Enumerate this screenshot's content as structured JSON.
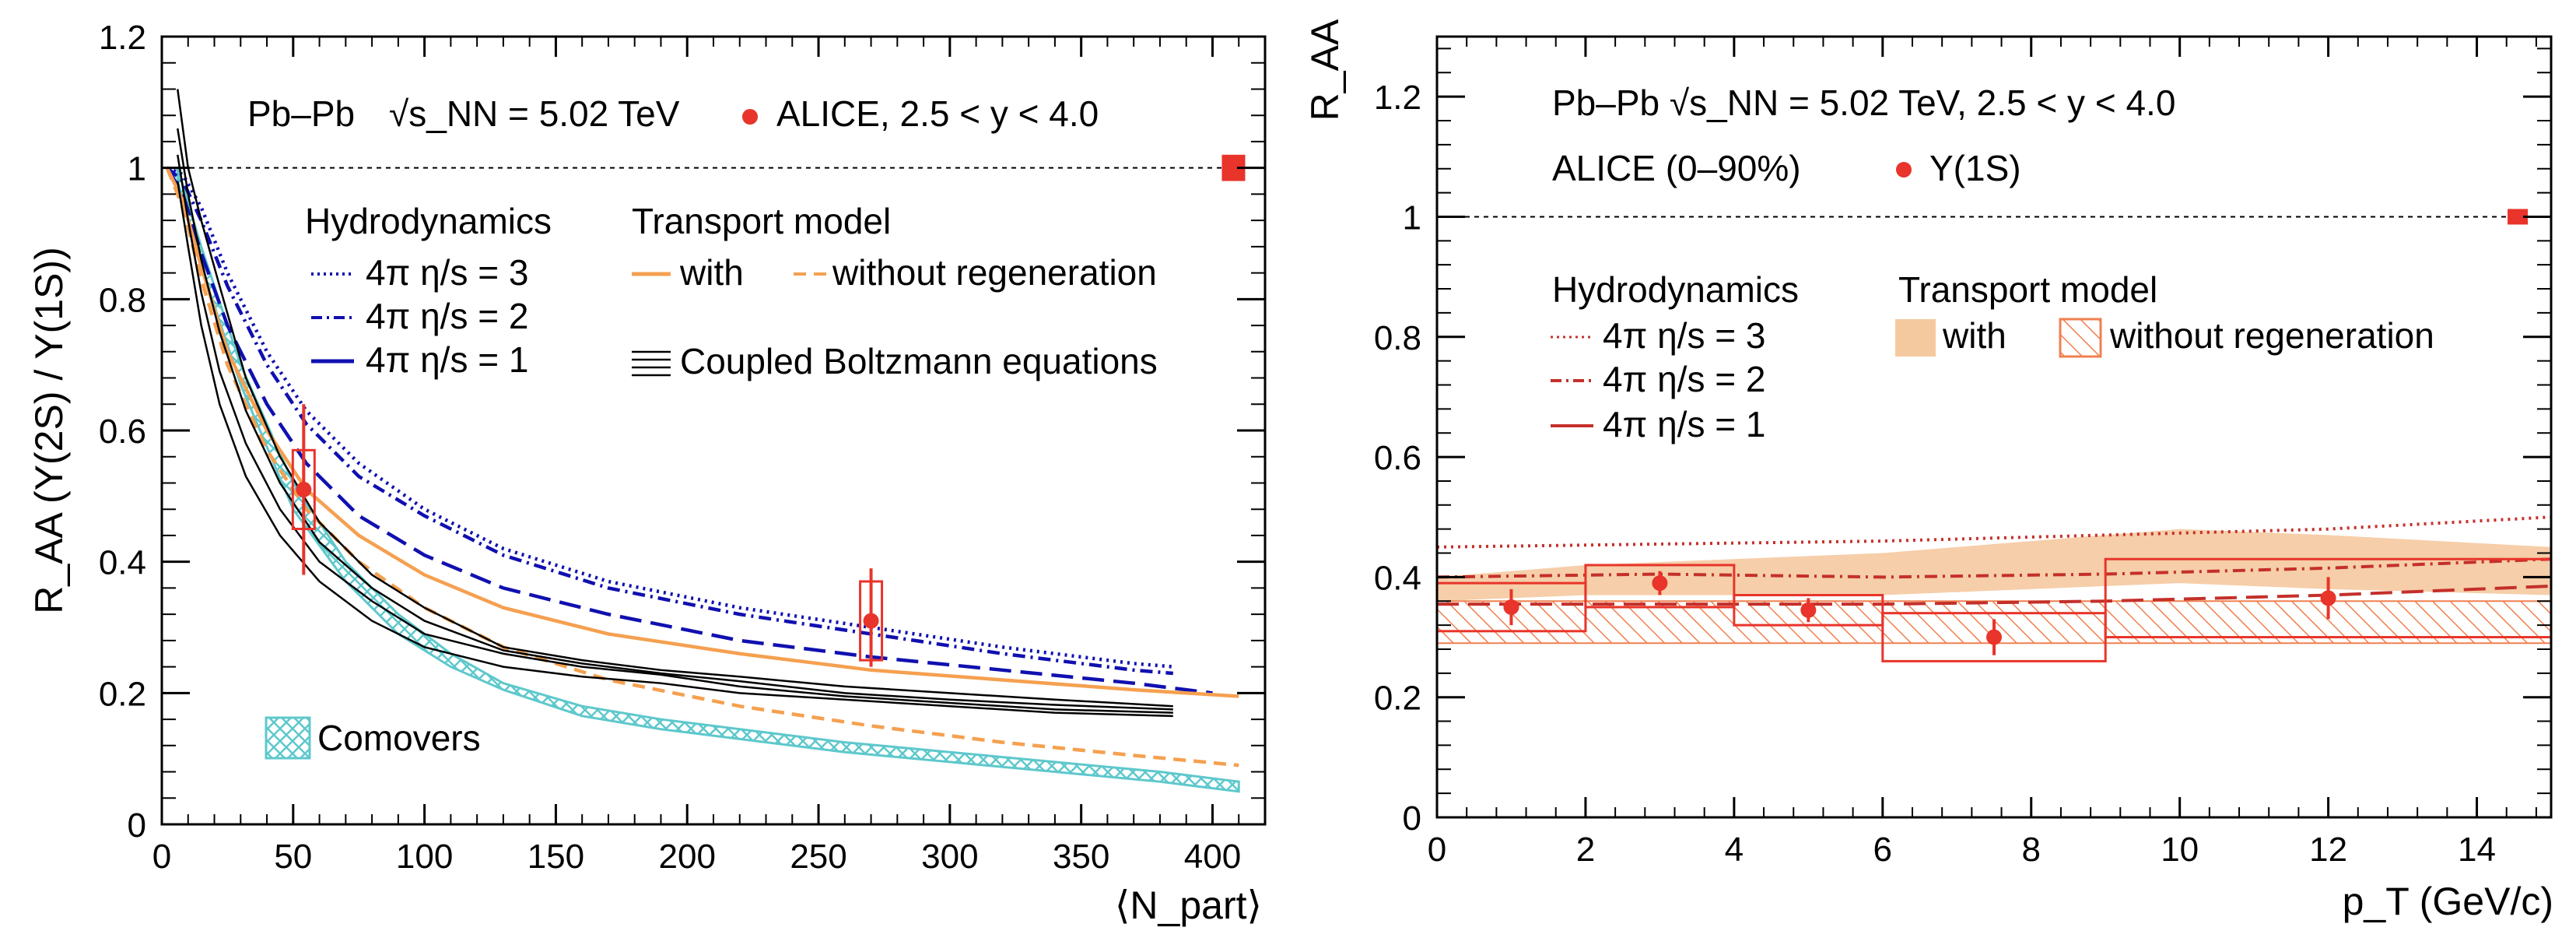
{
  "colors": {
    "alice": "#e8342a",
    "hydro_left": "#1010b0",
    "transport": "#f5a050",
    "comovers": "#5ec8cc",
    "boltzmann": "#000000",
    "hydro_right": "#c4302a",
    "band_fill": "#f5c9a0",
    "hatch": "#f08050"
  },
  "chart_data": [
    {
      "type": "line",
      "panel": "left",
      "ylabel": "R_AA (Υ(2S) / Υ(1S))",
      "xlabel": "⟨N_part⟩",
      "xlim": [
        0,
        420
      ],
      "ylim": [
        0,
        1.2
      ],
      "xticks": [
        "0",
        "50",
        "100",
        "150",
        "200",
        "250",
        "300",
        "350",
        "400"
      ],
      "yticks": [
        "0",
        "0.2",
        "0.4",
        "0.6",
        "0.8",
        "1",
        "1.2"
      ],
      "header": {
        "system": "Pb–Pb",
        "energy": "√s_NN = 5.02 TeV",
        "alice": "ALICE, 2.5 < y < 4.0"
      },
      "legend": {
        "hydro_title": "Hydrodynamics",
        "hydro3": "4π η/s = 3",
        "hydro2": "4π η/s = 2",
        "hydro1": "4π η/s = 1",
        "transport_title": "Transport model",
        "with": "with",
        "without": "without regeneration",
        "boltzmann": "Coupled Boltzmann equations",
        "comovers": "Comovers"
      },
      "series": [
        {
          "name": "4π η/s = 3",
          "style": "dotted",
          "color": "hydro_left",
          "x": [
            2,
            8,
            15,
            25,
            40,
            55,
            75,
            100,
            130,
            170,
            220,
            270,
            320,
            370,
            385
          ],
          "y": [
            1.0,
            0.99,
            0.94,
            0.84,
            0.72,
            0.63,
            0.55,
            0.48,
            0.42,
            0.37,
            0.33,
            0.3,
            0.27,
            0.245,
            0.24
          ]
        },
        {
          "name": "4π η/s = 2",
          "style": "dashdot",
          "color": "hydro_left",
          "x": [
            2,
            8,
            15,
            25,
            40,
            55,
            75,
            100,
            130,
            170,
            220,
            270,
            320,
            370,
            385
          ],
          "y": [
            1.0,
            0.98,
            0.92,
            0.82,
            0.7,
            0.61,
            0.53,
            0.47,
            0.41,
            0.36,
            0.32,
            0.29,
            0.26,
            0.235,
            0.23
          ]
        },
        {
          "name": "4π η/s = 1",
          "style": "longdash",
          "color": "hydro_left",
          "x": [
            2,
            8,
            15,
            25,
            40,
            55,
            75,
            100,
            130,
            170,
            220,
            270,
            320,
            370,
            400
          ],
          "y": [
            1.0,
            0.96,
            0.87,
            0.76,
            0.64,
            0.55,
            0.47,
            0.41,
            0.36,
            0.32,
            0.28,
            0.255,
            0.235,
            0.215,
            0.2
          ]
        },
        {
          "name": "Transport with regeneration",
          "style": "solid",
          "color": "transport",
          "x": [
            2,
            8,
            15,
            25,
            40,
            55,
            75,
            100,
            130,
            170,
            220,
            270,
            320,
            370,
            410
          ],
          "y": [
            1.0,
            0.95,
            0.85,
            0.72,
            0.6,
            0.51,
            0.44,
            0.38,
            0.33,
            0.29,
            0.26,
            0.235,
            0.22,
            0.205,
            0.195
          ]
        },
        {
          "name": "Transport without regeneration",
          "style": "dashed",
          "color": "transport",
          "x": [
            2,
            8,
            15,
            25,
            40,
            55,
            75,
            100,
            130,
            170,
            220,
            270,
            320,
            370,
            410
          ],
          "y": [
            1.0,
            0.94,
            0.83,
            0.7,
            0.57,
            0.48,
            0.4,
            0.33,
            0.27,
            0.22,
            0.18,
            0.15,
            0.125,
            0.105,
            0.09
          ]
        },
        {
          "name": "Coupled Boltzmann 1",
          "style": "solid",
          "color": "boltzmann",
          "x": [
            6,
            10,
            15,
            22,
            32,
            45,
            60,
            80,
            100,
            130,
            160,
            190,
            220,
            260,
            300,
            340,
            385
          ],
          "y": [
            1.12,
            1.0,
            0.92,
            0.82,
            0.68,
            0.56,
            0.46,
            0.38,
            0.33,
            0.27,
            0.25,
            0.235,
            0.225,
            0.21,
            0.2,
            0.19,
            0.18
          ]
        },
        {
          "name": "Coupled Boltzmann 2",
          "style": "solid",
          "color": "boltzmann",
          "x": [
            6,
            10,
            15,
            22,
            32,
            45,
            60,
            80,
            100,
            130,
            160,
            190,
            220,
            260,
            300,
            340,
            385
          ],
          "y": [
            1.06,
            0.96,
            0.86,
            0.75,
            0.63,
            0.52,
            0.43,
            0.36,
            0.31,
            0.265,
            0.245,
            0.23,
            0.218,
            0.2,
            0.19,
            0.182,
            0.175
          ]
        },
        {
          "name": "Coupled Boltzmann 3",
          "style": "solid",
          "color": "boltzmann",
          "x": [
            6,
            10,
            15,
            22,
            32,
            45,
            60,
            80,
            100,
            130,
            160,
            190,
            220,
            260,
            300,
            340,
            385
          ],
          "y": [
            1.02,
            0.92,
            0.81,
            0.69,
            0.58,
            0.48,
            0.4,
            0.34,
            0.29,
            0.26,
            0.24,
            0.228,
            0.21,
            0.195,
            0.185,
            0.175,
            0.17
          ]
        },
        {
          "name": "Coupled Boltzmann 4",
          "style": "solid",
          "color": "boltzmann",
          "x": [
            6,
            10,
            15,
            22,
            32,
            45,
            60,
            80,
            100,
            130,
            160,
            190,
            220,
            260,
            300,
            340,
            385
          ],
          "y": [
            0.98,
            0.88,
            0.76,
            0.64,
            0.53,
            0.44,
            0.37,
            0.31,
            0.27,
            0.24,
            0.225,
            0.215,
            0.2,
            0.19,
            0.18,
            0.17,
            0.165
          ]
        }
      ],
      "comovers_band": {
        "x": [
          6,
          15,
          30,
          50,
          70,
          90,
          110,
          130,
          160,
          190,
          220,
          260,
          300,
          340,
          380,
          410
        ],
        "upper": [
          1.0,
          0.88,
          0.7,
          0.52,
          0.4,
          0.32,
          0.26,
          0.215,
          0.18,
          0.16,
          0.145,
          0.125,
          0.11,
          0.095,
          0.08,
          0.065
        ],
        "lower": [
          0.98,
          0.85,
          0.67,
          0.48,
          0.37,
          0.29,
          0.24,
          0.205,
          0.165,
          0.145,
          0.13,
          0.11,
          0.095,
          0.08,
          0.065,
          0.05
        ]
      },
      "data_points": [
        {
          "x": 54,
          "y": 0.51,
          "stat_low": 0.38,
          "stat_high": 0.64,
          "sys_low": 0.45,
          "sys_high": 0.57
        },
        {
          "x": 270,
          "y": 0.31,
          "stat_low": 0.24,
          "stat_high": 0.39,
          "sys_low": 0.25,
          "sys_high": 0.37
        }
      ],
      "global_uncertainty": {
        "x": 408,
        "low": 0.98,
        "high": 1.02
      },
      "reference_line": 1
    },
    {
      "type": "line",
      "panel": "right",
      "ylabel": "R_AA",
      "xlabel": "p_T (GeV/c)",
      "xlim": [
        0,
        15
      ],
      "ylim": [
        0,
        1.3
      ],
      "xticks": [
        "0",
        "2",
        "4",
        "6",
        "8",
        "10",
        "12",
        "14"
      ],
      "yticks": [
        "0",
        "0.2",
        "0.4",
        "0.6",
        "0.8",
        "1",
        "1.2"
      ],
      "header": {
        "line1": "Pb–Pb √s_NN = 5.02 TeV, 2.5 < y < 4.0",
        "line2_left": "ALICE (0–90%)",
        "line2_right": "Υ(1S)"
      },
      "legend": {
        "hydro_title": "Hydrodynamics",
        "hydro3": "4π η/s = 3",
        "hydro2": "4π η/s = 2",
        "hydro1": "4π η/s = 1",
        "transport_title": "Transport model",
        "with": "with",
        "without": "without regeneration"
      },
      "series": [
        {
          "name": "4π η/s = 3",
          "style": "dotted",
          "x": [
            0,
            3,
            6,
            9,
            12,
            15
          ],
          "y": [
            0.45,
            0.455,
            0.46,
            0.47,
            0.48,
            0.5
          ]
        },
        {
          "name": "4π η/s = 2",
          "style": "dashdot",
          "x": [
            0,
            3,
            6,
            9,
            12,
            15
          ],
          "y": [
            0.4,
            0.405,
            0.4,
            0.405,
            0.415,
            0.43
          ]
        },
        {
          "name": "4π η/s = 1",
          "style": "longdash",
          "x": [
            0,
            3,
            6,
            9,
            12,
            15
          ],
          "y": [
            0.355,
            0.355,
            0.355,
            0.36,
            0.37,
            0.385
          ]
        }
      ],
      "band_with": {
        "x": [
          0,
          2,
          4,
          6,
          8,
          10,
          12,
          15
        ],
        "upper": [
          0.4,
          0.42,
          0.43,
          0.44,
          0.46,
          0.48,
          0.47,
          0.45
        ],
        "lower": [
          0.36,
          0.37,
          0.37,
          0.37,
          0.38,
          0.39,
          0.38,
          0.37
        ]
      },
      "band_without": {
        "x": [
          0,
          2,
          4,
          6,
          8,
          10,
          12,
          15
        ],
        "upper": [
          0.36,
          0.36,
          0.36,
          0.36,
          0.36,
          0.36,
          0.36,
          0.36
        ],
        "lower": [
          0.29,
          0.29,
          0.29,
          0.29,
          0.29,
          0.29,
          0.29,
          0.29
        ]
      },
      "data_points": [
        {
          "x": 1,
          "y": 0.35,
          "xlow": 0,
          "xhigh": 2,
          "stat_low": 0.32,
          "stat_high": 0.38,
          "sys_low": 0.31,
          "sys_high": 0.39
        },
        {
          "x": 3,
          "y": 0.39,
          "xlow": 2,
          "xhigh": 4,
          "stat_low": 0.37,
          "stat_high": 0.41,
          "sys_low": 0.35,
          "sys_high": 0.42
        },
        {
          "x": 5,
          "y": 0.345,
          "xlow": 4,
          "xhigh": 6,
          "stat_low": 0.325,
          "stat_high": 0.365,
          "sys_low": 0.32,
          "sys_high": 0.37
        },
        {
          "x": 7.5,
          "y": 0.3,
          "xlow": 6,
          "xhigh": 9,
          "stat_low": 0.27,
          "stat_high": 0.33,
          "sys_low": 0.26,
          "sys_high": 0.34
        },
        {
          "x": 12,
          "y": 0.365,
          "xlow": 9,
          "xhigh": 15,
          "stat_low": 0.33,
          "stat_high": 0.4,
          "sys_low": 0.3,
          "sys_high": 0.43
        }
      ],
      "global_uncertainty": {
        "x": 14.55,
        "low": 0.99,
        "high": 1.01
      },
      "reference_line": 1
    }
  ]
}
